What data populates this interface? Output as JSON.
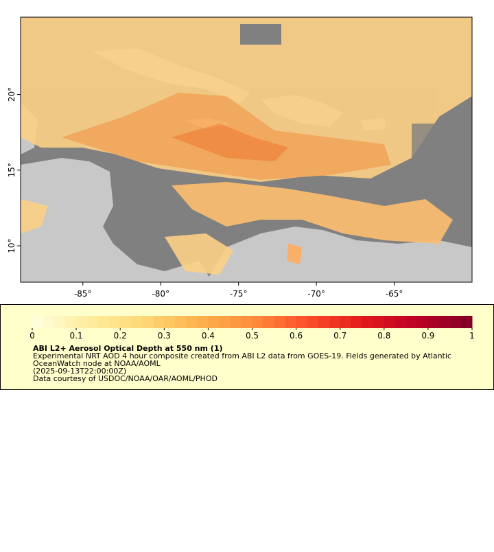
{
  "chart_data": {
    "type": "map",
    "xlim": [
      -89,
      -60
    ],
    "ylim": [
      7.6,
      25.1
    ],
    "xticks": [
      {
        "value": -85,
        "label": "-85°"
      },
      {
        "value": -80,
        "label": "-80°"
      },
      {
        "value": -75,
        "label": "-75°"
      },
      {
        "value": -70,
        "label": "-70°"
      },
      {
        "value": -65,
        "label": "-65°"
      }
    ],
    "yticks": [
      {
        "value": 10,
        "label": "10°"
      },
      {
        "value": 15,
        "label": "15°"
      },
      {
        "value": 20,
        "label": "20°"
      }
    ],
    "colorbar": {
      "lim": [
        0,
        1
      ],
      "ticks": [
        0,
        0.1,
        0.2,
        0.3,
        0.4,
        0.5,
        0.6,
        0.7,
        0.8,
        0.9,
        1
      ],
      "colormap": [
        "#ffffe0",
        "#ffeda0",
        "#fed976",
        "#feb24c",
        "#fd8d3c",
        "#fc4e2a",
        "#e31a1c",
        "#bd0026",
        "#800026"
      ]
    },
    "legend": {
      "title": "ABI L2+ Aerosol Optical Depth at 550 nm (1)",
      "lines": [
        "Experimental NRT AOD 4 hour composite created from ABI L2 data from GOES-19. Fields generated by Atlantic",
        "OceanWatch node at NOAA/AOML",
        "(2025-09-13T22:00:00Z)",
        "Data courtesy of USDOC/NOAA/OAR/AOML/PHOD"
      ]
    }
  }
}
